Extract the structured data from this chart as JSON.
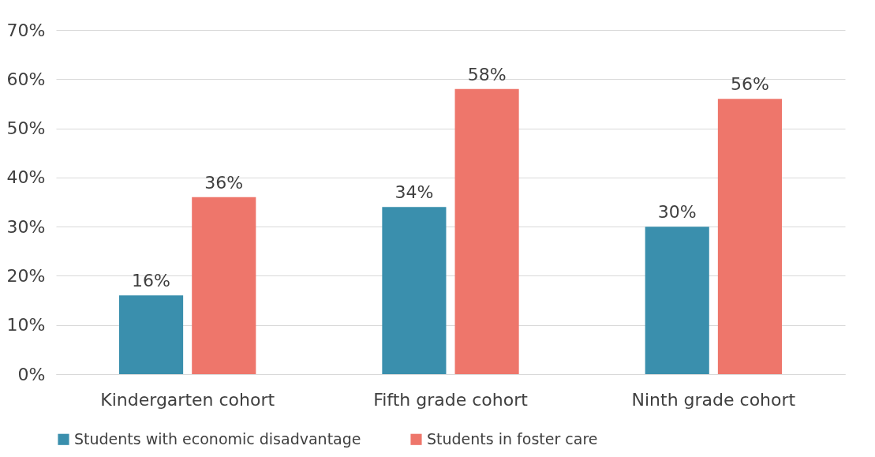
{
  "chart_data": {
    "type": "bar",
    "categories": [
      "Kindergarten cohort",
      "Fifth grade cohort",
      "Ninth grade cohort"
    ],
    "series": [
      {
        "name": "Students with economic disadvantage",
        "color": "#3a8fad",
        "values": [
          16,
          34,
          30
        ],
        "value_labels": [
          "16%",
          "34%",
          "30%"
        ]
      },
      {
        "name": "Students in foster care",
        "color": "#ee766b",
        "values": [
          36,
          58,
          56
        ],
        "value_labels": [
          "36%",
          "58%",
          "56%"
        ]
      }
    ],
    "ylim": [
      0,
      70
    ],
    "yticks": [
      {
        "value": 0,
        "label": "0%"
      },
      {
        "value": 10,
        "label": "10%"
      },
      {
        "value": 20,
        "label": "20%"
      },
      {
        "value": 30,
        "label": "30%"
      },
      {
        "value": 40,
        "label": "40%"
      },
      {
        "value": 50,
        "label": "50%"
      },
      {
        "value": 60,
        "label": "60%"
      },
      {
        "value": 70,
        "label": "70%"
      }
    ],
    "grid": "y",
    "legend": "bottom"
  }
}
